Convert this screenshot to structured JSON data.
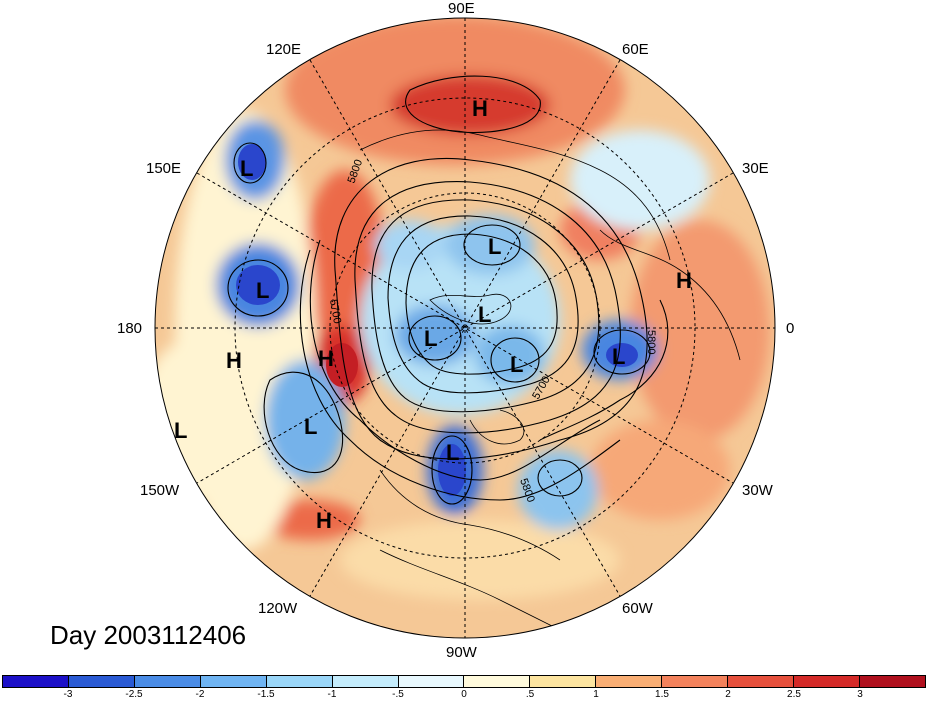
{
  "map": {
    "longitude_labels": [
      {
        "text": "90E",
        "name": "lon-label-90e"
      },
      {
        "text": "60E",
        "name": "lon-label-60e"
      },
      {
        "text": "30E",
        "name": "lon-label-30e"
      },
      {
        "text": "0",
        "name": "lon-label-0"
      },
      {
        "text": "30W",
        "name": "lon-label-30w"
      },
      {
        "text": "60W",
        "name": "lon-label-60w"
      },
      {
        "text": "90W",
        "name": "lon-label-90w"
      },
      {
        "text": "120W",
        "name": "lon-label-120w"
      },
      {
        "text": "150W",
        "name": "lon-label-150w"
      },
      {
        "text": "180",
        "name": "lon-label-180"
      },
      {
        "text": "150E",
        "name": "lon-label-150e"
      },
      {
        "text": "120E",
        "name": "lon-label-120e"
      }
    ],
    "pressure_centers": [
      {
        "type": "H",
        "region": "siberia"
      },
      {
        "type": "L",
        "region": "kamchatka"
      },
      {
        "type": "L",
        "region": "bering-sea"
      },
      {
        "type": "L",
        "region": "arctic-north"
      },
      {
        "type": "L",
        "region": "arctic-center"
      },
      {
        "type": "L",
        "region": "arctic-west"
      },
      {
        "type": "L",
        "region": "arctic-east"
      },
      {
        "type": "L",
        "region": "north-atlantic"
      },
      {
        "type": "H",
        "region": "europe"
      },
      {
        "type": "H",
        "region": "gulf-of-alaska"
      },
      {
        "type": "H",
        "region": "north-pacific"
      },
      {
        "type": "L",
        "region": "northeast-pacific"
      },
      {
        "type": "L",
        "region": "central-pacific"
      },
      {
        "type": "L",
        "region": "hudson-bay"
      },
      {
        "type": "H",
        "region": "subtropical-pacific"
      }
    ],
    "contour_labels": [
      "5800",
      "5700",
      "5800",
      "5700",
      "5800"
    ]
  },
  "day_label": "Day 2003112406",
  "colorbar": {
    "colors": [
      "#1c10c8",
      "#2a5ad4",
      "#4a8ce6",
      "#6fb4f2",
      "#9ad6f8",
      "#c4ecfc",
      "#e8f8fe",
      "#fffadc",
      "#fce4a0",
      "#f9ae74",
      "#f3825c",
      "#e6503c",
      "#d42a28",
      "#b0101e"
    ],
    "ticks": [
      "-3",
      "-2.5",
      "-2",
      "-1.5",
      "-1",
      "-.5",
      "0",
      ".5",
      "1",
      "1.5",
      "2",
      "2.5",
      "3"
    ]
  }
}
